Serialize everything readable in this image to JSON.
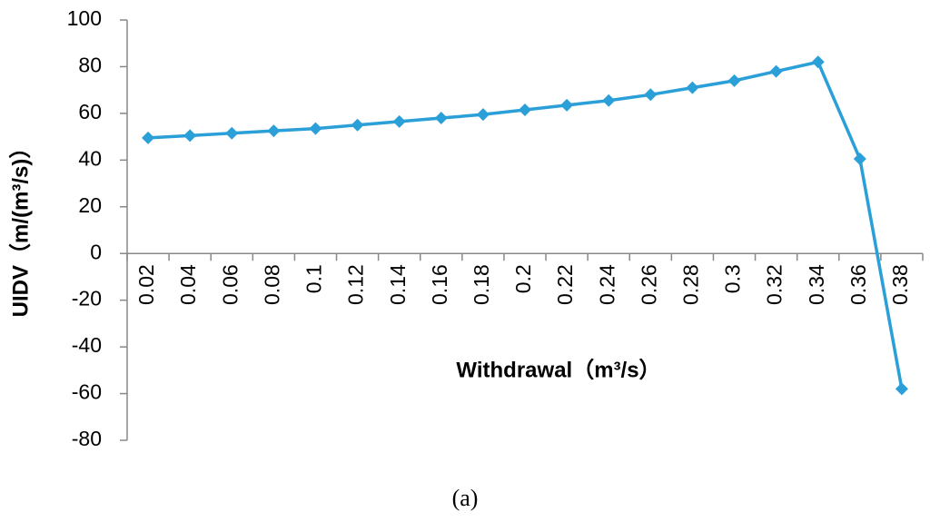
{
  "chart_data": {
    "type": "line",
    "categories": [
      "0.02",
      "0.04",
      "0.06",
      "0.08",
      "0.1",
      "0.12",
      "0.14",
      "0.16",
      "0.18",
      "0.2",
      "0.22",
      "0.24",
      "0.26",
      "0.28",
      "0.3",
      "0.32",
      "0.34",
      "0.36",
      "0.38"
    ],
    "values": [
      49.5,
      50.5,
      51.5,
      52.5,
      53.5,
      55,
      56.5,
      58,
      59.5,
      61.5,
      63.5,
      65.5,
      68,
      71,
      74,
      78,
      82,
      40.5,
      -58
    ],
    "color": "#2a9fd8",
    "ylim": [
      -80,
      100
    ],
    "yticks": [
      -80,
      -60,
      -40,
      -20,
      0,
      20,
      40,
      60,
      80,
      100
    ],
    "y_label": "UIDV（m/(m³/s)）",
    "x_label": "Withdrawal（m³/s）",
    "caption": "(a)"
  }
}
